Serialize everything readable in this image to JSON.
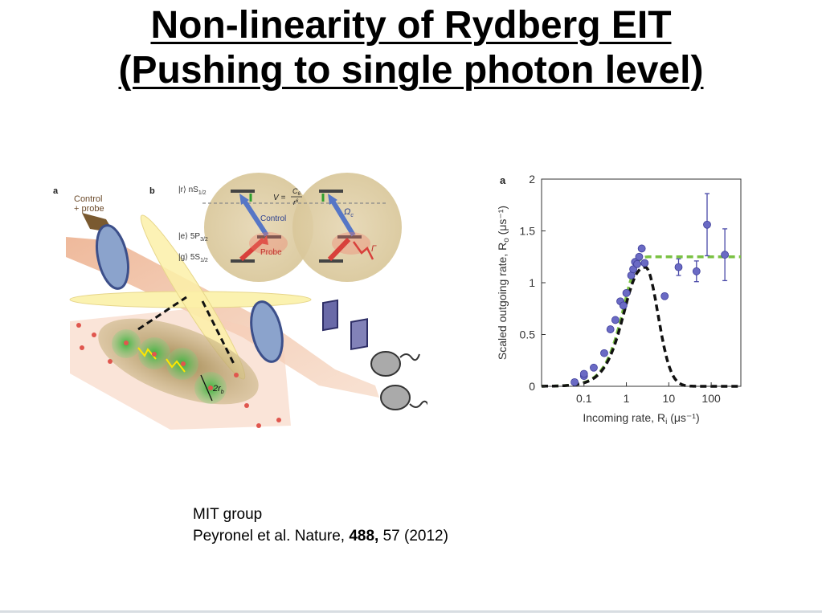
{
  "slide": {
    "title_line1": "Non-linearity of Rydberg EIT",
    "title_line2": "(Pushing to single photon level)"
  },
  "figure_left": {
    "panel_a_label": "a",
    "panel_b_label": "b",
    "control_probe_label_1": "Control",
    "control_probe_label_2": "+ probe",
    "level_r": "|r⟩ nS",
    "level_r_sub": "1/2",
    "level_e": "|e⟩ 5P",
    "level_e_sub": "3/2",
    "level_g": "|g⟩ 5S",
    "level_g_sub": "1/2",
    "interaction_v": "V =",
    "interaction_num": "C",
    "interaction_num_sub": "6",
    "interaction_den": "r",
    "interaction_den_sup": "6",
    "control_arrow_label": "Control",
    "probe_arrow_label": "Probe",
    "omega_label": "Ω",
    "omega_sub": "c",
    "gamma_label": "Γ",
    "blockade_label": "2r",
    "blockade_sub": "b"
  },
  "figure_right": {
    "panel_label": "a",
    "chart_data": {
      "type": "scatter",
      "xlabel": "Incoming rate, R",
      "xlabel_sub": "i",
      "xlabel_unit": "(μs⁻¹)",
      "ylabel": "Scaled outgoing rate, R",
      "ylabel_sub": "o",
      "ylabel_unit": "(μs⁻¹)",
      "x_scale": "log",
      "xlim": [
        0.01,
        500
      ],
      "ylim": [
        0,
        2
      ],
      "x_ticks": [
        "0.1",
        "1",
        "10",
        "100"
      ],
      "x_tick_values": [
        0.1,
        1,
        10,
        100
      ],
      "y_ticks": [
        "0",
        "0.5",
        "1",
        "1.5",
        "2"
      ],
      "y_tick_values": [
        0,
        0.5,
        1,
        1.5,
        2
      ],
      "points": [
        {
          "x": 0.06,
          "y": 0.04,
          "err": 0
        },
        {
          "x": 0.1,
          "y": 0.1,
          "err": 0
        },
        {
          "x": 0.1,
          "y": 0.12,
          "err": 0
        },
        {
          "x": 0.17,
          "y": 0.18,
          "err": 0
        },
        {
          "x": 0.3,
          "y": 0.32,
          "err": 0
        },
        {
          "x": 0.42,
          "y": 0.55,
          "err": 0
        },
        {
          "x": 0.55,
          "y": 0.64,
          "err": 0
        },
        {
          "x": 0.72,
          "y": 0.82,
          "err": 0
        },
        {
          "x": 0.85,
          "y": 0.78,
          "err": 0
        },
        {
          "x": 1.0,
          "y": 0.9,
          "err": 0
        },
        {
          "x": 1.3,
          "y": 1.07,
          "err": 0
        },
        {
          "x": 1.45,
          "y": 1.13,
          "err": 0
        },
        {
          "x": 1.6,
          "y": 1.2,
          "err": 0
        },
        {
          "x": 1.8,
          "y": 1.18,
          "err": 0
        },
        {
          "x": 2.0,
          "y": 1.25,
          "err": 0
        },
        {
          "x": 2.3,
          "y": 1.33,
          "err": 0
        },
        {
          "x": 2.7,
          "y": 1.19,
          "err": 0
        },
        {
          "x": 8.0,
          "y": 0.87,
          "err": 0
        },
        {
          "x": 17,
          "y": 1.15,
          "err": 0.08
        },
        {
          "x": 45,
          "y": 1.11,
          "err": 0.1
        },
        {
          "x": 80,
          "y": 1.56,
          "err": 0.3
        },
        {
          "x": 210,
          "y": 1.27,
          "err": 0.25
        }
      ],
      "fit_green": {
        "style": "dashed",
        "color": "#7ac143",
        "plateau": 1.25,
        "x_half": 0.9
      },
      "fit_black": {
        "style": "dashed",
        "color": "#111111",
        "peak_x": 2.8,
        "peak_y": 1.15,
        "cutoff_x": 25
      },
      "point_color": "#6a6ac4"
    }
  },
  "caption": {
    "line1": "MIT group",
    "line2_prefix": "Peyronel  et al. Nature, ",
    "line2_volume": "488,",
    "line2_suffix": " 57 (2012)"
  }
}
